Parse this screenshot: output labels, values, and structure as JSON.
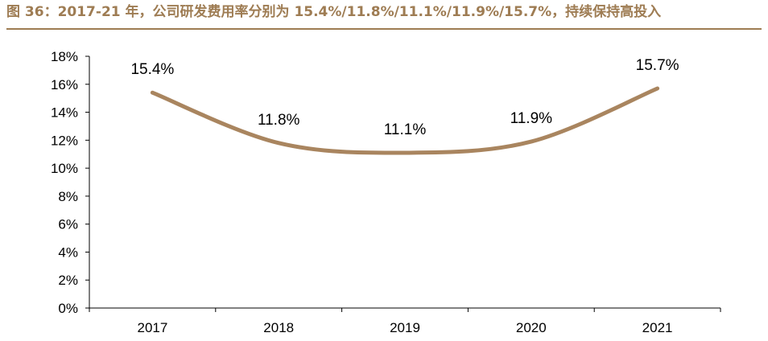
{
  "figure": {
    "title": "图 36：2017-21 年，公司研发费用率分别为 15.4%/11.8%/11.1%/11.9%/15.7%，持续保持高投入"
  },
  "colors": {
    "accent": "#9e7c53",
    "line": "#a9855f",
    "axis": "#000000"
  },
  "chart_data": {
    "type": "line",
    "categories": [
      "2017",
      "2018",
      "2019",
      "2020",
      "2021"
    ],
    "series": [
      {
        "values": [
          15.4,
          11.8,
          11.1,
          11.9,
          15.7
        ],
        "labels": [
          "15.4%",
          "11.8%",
          "11.1%",
          "11.9%",
          "15.7%"
        ]
      }
    ],
    "ylim": [
      0,
      18
    ],
    "yticks": [
      0,
      2,
      4,
      6,
      8,
      10,
      12,
      14,
      16,
      18
    ],
    "ytick_labels": [
      "0%",
      "2%",
      "4%",
      "6%",
      "8%",
      "10%",
      "12%",
      "14%",
      "16%",
      "18%"
    ],
    "smooth": true,
    "grid": false,
    "legend": "none"
  }
}
